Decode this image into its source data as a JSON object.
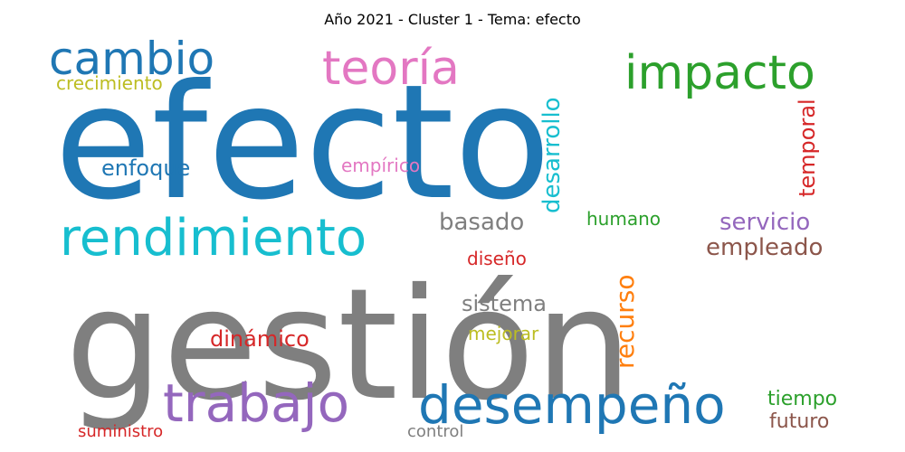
{
  "title": "Año 2021 - Cluster 1 - Tema: efecto",
  "words": [
    {
      "text": "efecto",
      "color": "#1f77b4"
    },
    {
      "text": "gestión",
      "color": "#7f7f7f"
    },
    {
      "text": "desempeño",
      "color": "#1f77b4"
    },
    {
      "text": "trabajo",
      "color": "#9467bd"
    },
    {
      "text": "rendimiento",
      "color": "#17becf"
    },
    {
      "text": "impacto",
      "color": "#2ca02c"
    },
    {
      "text": "teoría",
      "color": "#e377c2"
    },
    {
      "text": "cambio",
      "color": "#1f77b4"
    },
    {
      "text": "crecimiento",
      "color": "#bcbd22"
    },
    {
      "text": "enfoque",
      "color": "#1f77b4"
    },
    {
      "text": "empírico",
      "color": "#e377c2"
    },
    {
      "text": "desarrollo",
      "color": "#17becf"
    },
    {
      "text": "temporal",
      "color": "#d62728"
    },
    {
      "text": "basado",
      "color": "#7f7f7f"
    },
    {
      "text": "humano",
      "color": "#2ca02c"
    },
    {
      "text": "servicio",
      "color": "#9467bd"
    },
    {
      "text": "empleado",
      "color": "#8c564b"
    },
    {
      "text": "diseño",
      "color": "#d62728"
    },
    {
      "text": "recurso",
      "color": "#ff7f0e"
    },
    {
      "text": "sistema",
      "color": "#7f7f7f"
    },
    {
      "text": "dinámico",
      "color": "#d62728"
    },
    {
      "text": "mejorar",
      "color": "#bcbd22"
    },
    {
      "text": "tiempo",
      "color": "#2ca02c"
    },
    {
      "text": "futuro",
      "color": "#8c564b"
    },
    {
      "text": "suministro",
      "color": "#d62728"
    },
    {
      "text": "control",
      "color": "#7f7f7f"
    }
  ]
}
